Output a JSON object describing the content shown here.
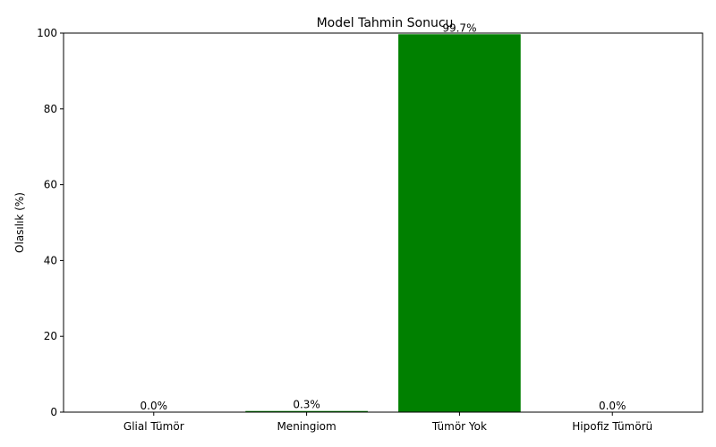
{
  "chart_data": {
    "type": "bar",
    "title": "Model Tahmin Sonucu",
    "xlabel": "",
    "ylabel": "Olasılık (%)",
    "categories": [
      "Glial Tümör",
      "Meningiom",
      "Tümör Yok",
      "Hipofiz Tümörü"
    ],
    "values": [
      0.0,
      0.3,
      99.7,
      0.0
    ],
    "data_labels": [
      "0.0%",
      "0.3%",
      "99.7%",
      "0.0%"
    ],
    "ylim": [
      0,
      100
    ],
    "yticks": [
      0,
      20,
      40,
      60,
      80,
      100
    ],
    "ytick_labels": [
      "0",
      "20",
      "40",
      "60",
      "80",
      "100"
    ],
    "bar_color": "#008000",
    "grid": false,
    "legend": "none"
  }
}
